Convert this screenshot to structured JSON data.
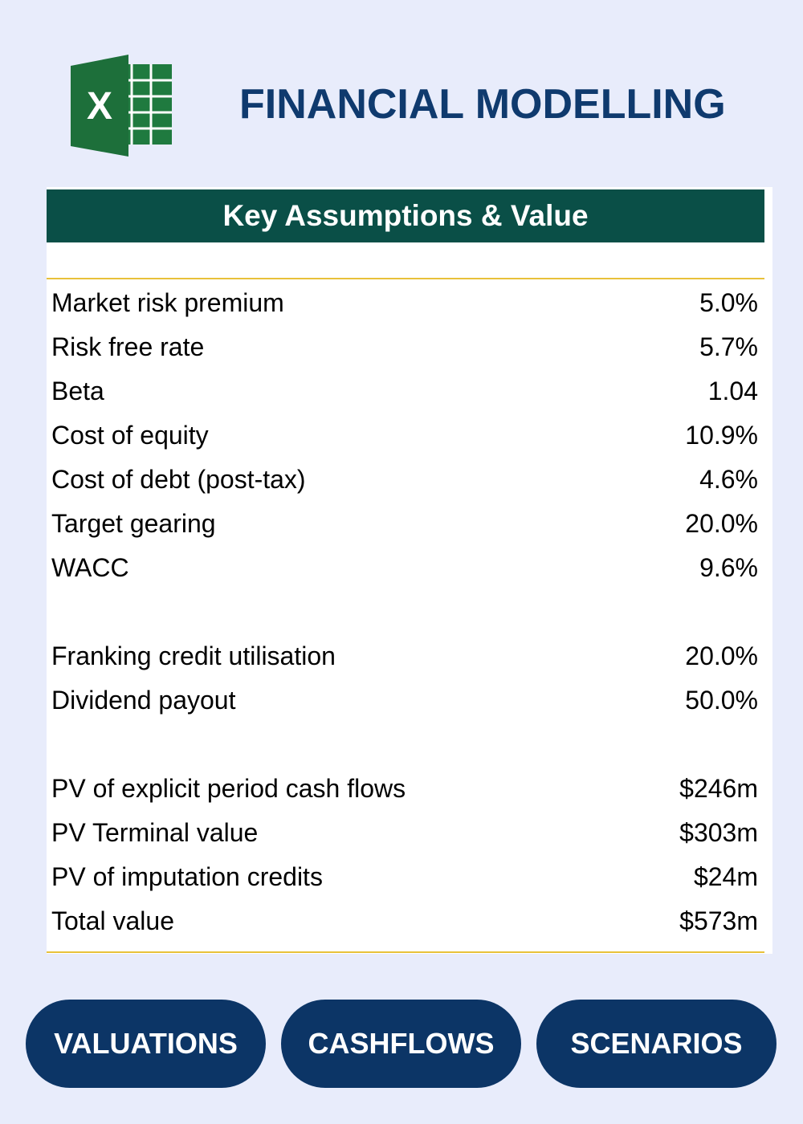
{
  "header": {
    "title": "FINANCIAL MODELLING"
  },
  "table": {
    "title": "Key Assumptions & Value",
    "groups": [
      [
        [
          "Market risk premium",
          "5.0%"
        ],
        [
          "Risk free rate",
          "5.7%"
        ],
        [
          "Beta",
          "1.04"
        ],
        [
          "Cost of equity",
          "10.9%"
        ],
        [
          "Cost of debt (post-tax)",
          "4.6%"
        ],
        [
          "Target gearing",
          "20.0%"
        ],
        [
          "WACC",
          "9.6%"
        ]
      ],
      [
        [
          "Franking credit utilisation",
          "20.0%"
        ],
        [
          "Dividend payout",
          "50.0%"
        ]
      ],
      [
        [
          "PV of explicit period cash flows",
          "$246m"
        ],
        [
          "PV Terminal value",
          "$303m"
        ],
        [
          "PV of imputation credits",
          "$24m"
        ],
        [
          "Total value",
          "$573m"
        ]
      ]
    ]
  },
  "buttons": [
    "VALUATIONS",
    "CASHFLOWS",
    "SCENARIOS"
  ]
}
